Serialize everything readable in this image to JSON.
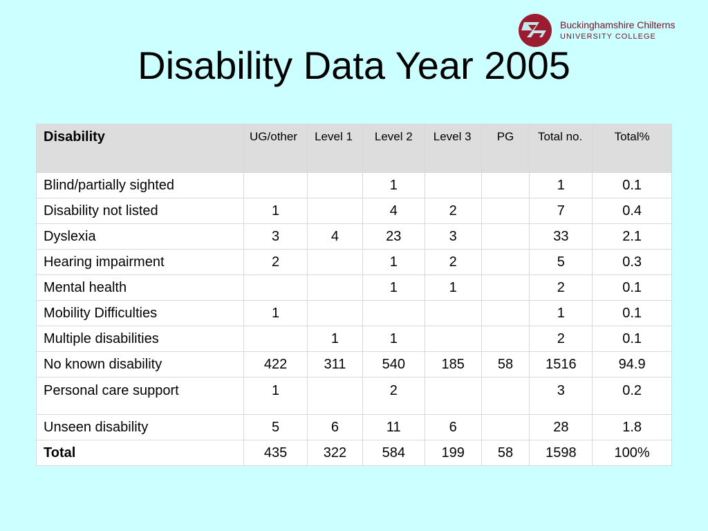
{
  "logo": {
    "line1": "Buckinghamshire Chilterns",
    "line2": "UNIVERSITY COLLEGE",
    "brand_color": "#9b1b30",
    "icon": "university-logo-icon"
  },
  "title": "Disability Data Year 2005",
  "table": {
    "headers": [
      "Disability",
      "UG/other",
      "Level 1",
      "Level 2",
      "Level 3",
      "PG",
      "Total no.",
      "Total%"
    ],
    "rows": [
      [
        "Blind/partially sighted",
        "",
        "",
        "1",
        "",
        "",
        "1",
        "0.1"
      ],
      [
        "Disability not listed",
        "1",
        "",
        "4",
        "2",
        "",
        "7",
        "0.4"
      ],
      [
        "Dyslexia",
        "3",
        "4",
        "23",
        "3",
        "",
        "33",
        "2.1"
      ],
      [
        "Hearing impairment",
        "2",
        "",
        "1",
        "2",
        "",
        "5",
        "0.3"
      ],
      [
        "Mental health",
        "",
        "",
        "1",
        "1",
        "",
        "2",
        "0.1"
      ],
      [
        "Mobility Difficulties",
        "1",
        "",
        "",
        "",
        "",
        "1",
        "0.1"
      ],
      [
        "Multiple disabilities",
        "",
        "1",
        "1",
        "",
        "",
        "2",
        "0.1"
      ],
      [
        "No known disability",
        "422",
        "311",
        "540",
        "185",
        "58",
        "1516",
        "94.9"
      ],
      [
        "Personal care support",
        "1",
        "",
        "2",
        "",
        "",
        "3",
        "0.2"
      ],
      [
        "Unseen disability",
        "5",
        "6",
        "11",
        "6",
        "",
        "28",
        "1.8"
      ],
      [
        "Total",
        "435",
        "322",
        "584",
        "199",
        "58",
        "1598",
        "100%"
      ]
    ]
  },
  "colors": {
    "background": "#ccffff",
    "header_bg": "#dddddd"
  }
}
